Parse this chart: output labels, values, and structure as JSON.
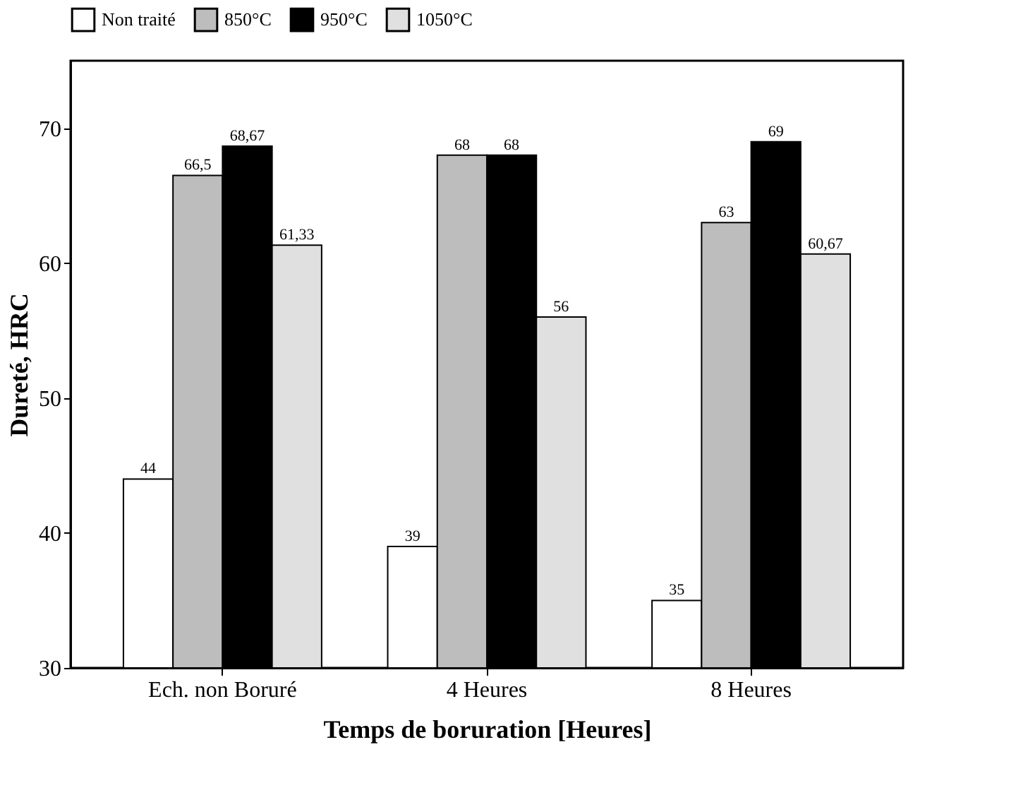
{
  "chart_data": {
    "type": "bar",
    "xlabel": "Temps de boruration [Heures]",
    "ylabel": "Dureté, HRC",
    "categories": [
      "Ech. non Boruré",
      "4 Heures",
      "8 Heures"
    ],
    "series": [
      {
        "name": "Non traité",
        "color": "#ffffff",
        "values": [
          44,
          39,
          35
        ],
        "value_labels": [
          "44",
          "39",
          "35"
        ]
      },
      {
        "name": "850°C",
        "color": "#bdbdbd",
        "values": [
          66.5,
          68,
          63
        ],
        "value_labels": [
          "66,5",
          "68",
          "63"
        ]
      },
      {
        "name": "950°C",
        "color": "#000000",
        "values": [
          68.67,
          68,
          69
        ],
        "value_labels": [
          "68,67",
          "68",
          "69"
        ]
      },
      {
        "name": "1050°C",
        "color": "#e0e0e0",
        "values": [
          61.33,
          56,
          60.67
        ],
        "value_labels": [
          "61,33",
          "56",
          "60,67"
        ]
      }
    ],
    "ylim": [
      30,
      75
    ],
    "yticks": [
      30,
      40,
      50,
      60,
      70
    ],
    "grid": false,
    "legend": "top"
  }
}
